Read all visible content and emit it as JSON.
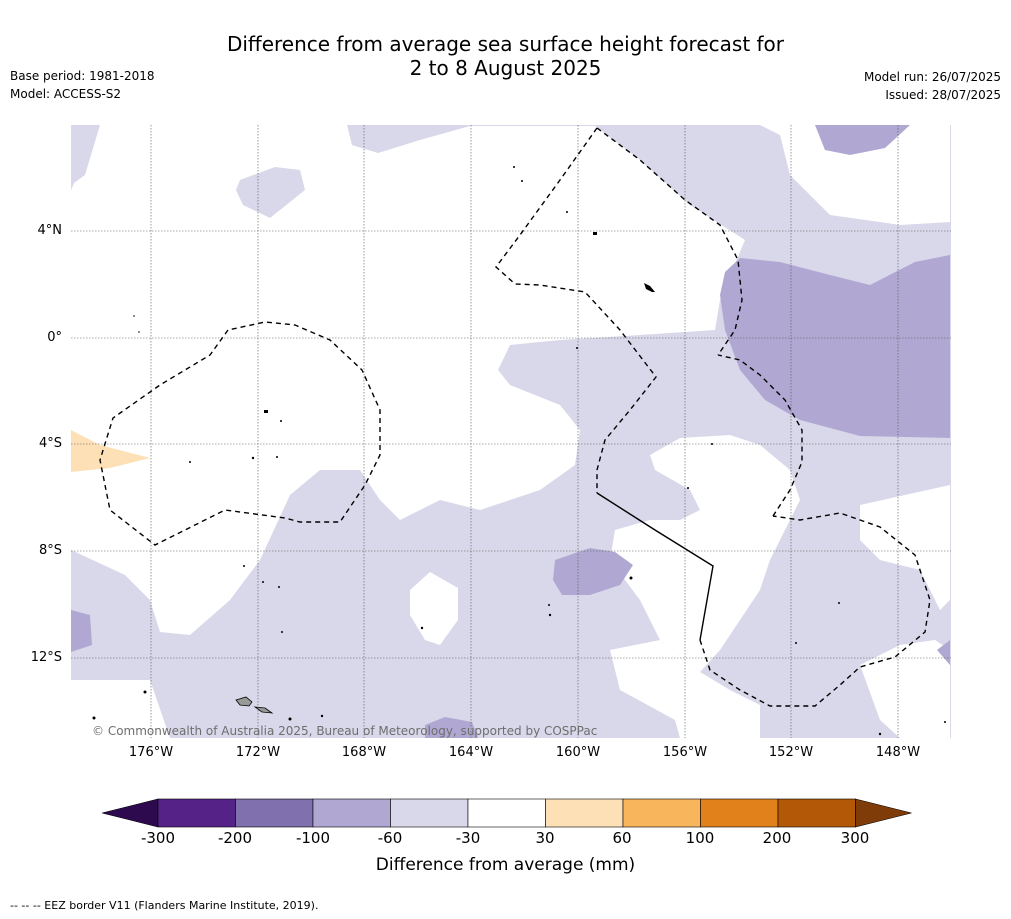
{
  "title_line1": "Difference from average sea surface height forecast for",
  "title_line2": "2 to 8 August 2025",
  "base_period": "Base period: 1981-2018",
  "model": "Model: ACCESS-S2",
  "model_run": "Model run: 26/07/2025",
  "issued": "Issued: 28/07/2025",
  "copyright": "© Commonwealth of Australia 2025, Bureau of Meteorology, supported by COSPPac",
  "lat_labels": [
    "4°N",
    "0°",
    "4°S",
    "8°S",
    "12°S"
  ],
  "lon_labels": [
    "176°W",
    "172°W",
    "168°W",
    "164°W",
    "160°W",
    "156°W",
    "152°W",
    "148°W"
  ],
  "colorbar": {
    "title": "Difference from average (mm)",
    "ticks": [
      "-300",
      "-200",
      "-100",
      "-60",
      "-30",
      "30",
      "60",
      "100",
      "200",
      "300"
    ],
    "colors": [
      "#552288",
      "#8070ad",
      "#b0a8d2",
      "#d8d8ea",
      "#ffffff",
      "#fde0b6",
      "#f9b55c",
      "#e0811b",
      "#b35806"
    ],
    "extend_low_color": "#2d0a4e",
    "extend_high_color": "#7f3b08"
  },
  "footer": "-- -- -- EEZ border V11 (Flanders Marine Institute, 2019)."
}
